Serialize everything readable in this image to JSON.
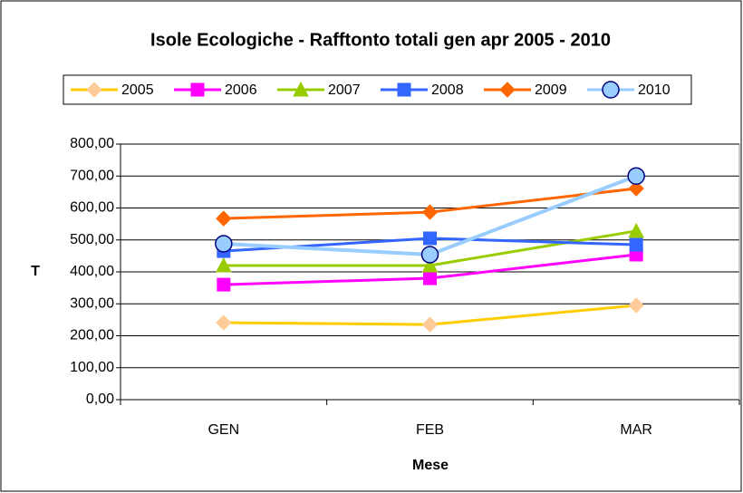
{
  "chart_data": {
    "type": "line",
    "title": "Isole Ecologiche - Rafftonto totali gen apr 2005 - 2010",
    "x_label": "Mese",
    "y_label": "T",
    "categories": [
      "GEN",
      "FEB",
      "MAR"
    ],
    "series": [
      {
        "name": "2005",
        "color": "#FFCC00",
        "marker_color": "#FFCC99",
        "marker": "diamond",
        "values": [
          241,
          235,
          295
        ]
      },
      {
        "name": "2006",
        "color": "#FF00FF",
        "marker_color": "#FF00FF",
        "marker": "square",
        "values": [
          360,
          380,
          454
        ]
      },
      {
        "name": "2007",
        "color": "#99CC00",
        "marker_color": "#99CC00",
        "marker": "triangle",
        "values": [
          420,
          420,
          528
        ]
      },
      {
        "name": "2008",
        "color": "#3366FF",
        "marker_color": "#3366FF",
        "marker": "square",
        "values": [
          465,
          505,
          485
        ]
      },
      {
        "name": "2009",
        "color": "#FF6600",
        "marker_color": "#FF6600",
        "marker": "diamond",
        "values": [
          567,
          587,
          661
        ]
      },
      {
        "name": "2010",
        "color": "#99CCFF",
        "marker_color": "#99CCFF",
        "marker": "circle",
        "values": [
          488,
          454,
          700
        ]
      }
    ],
    "ylim": [
      0,
      800
    ],
    "yticks": [
      {
        "value": 0,
        "label": "0,00"
      },
      {
        "value": 100,
        "label": "100,00"
      },
      {
        "value": 200,
        "label": "200,00"
      },
      {
        "value": 300,
        "label": "300,00"
      },
      {
        "value": 400,
        "label": "400,00"
      },
      {
        "value": 500,
        "label": "500,00"
      },
      {
        "value": 600,
        "label": "600,00"
      },
      {
        "value": 700,
        "label": "700,00"
      },
      {
        "value": 800,
        "label": "800,00"
      }
    ],
    "grid": true,
    "legend": "top"
  }
}
